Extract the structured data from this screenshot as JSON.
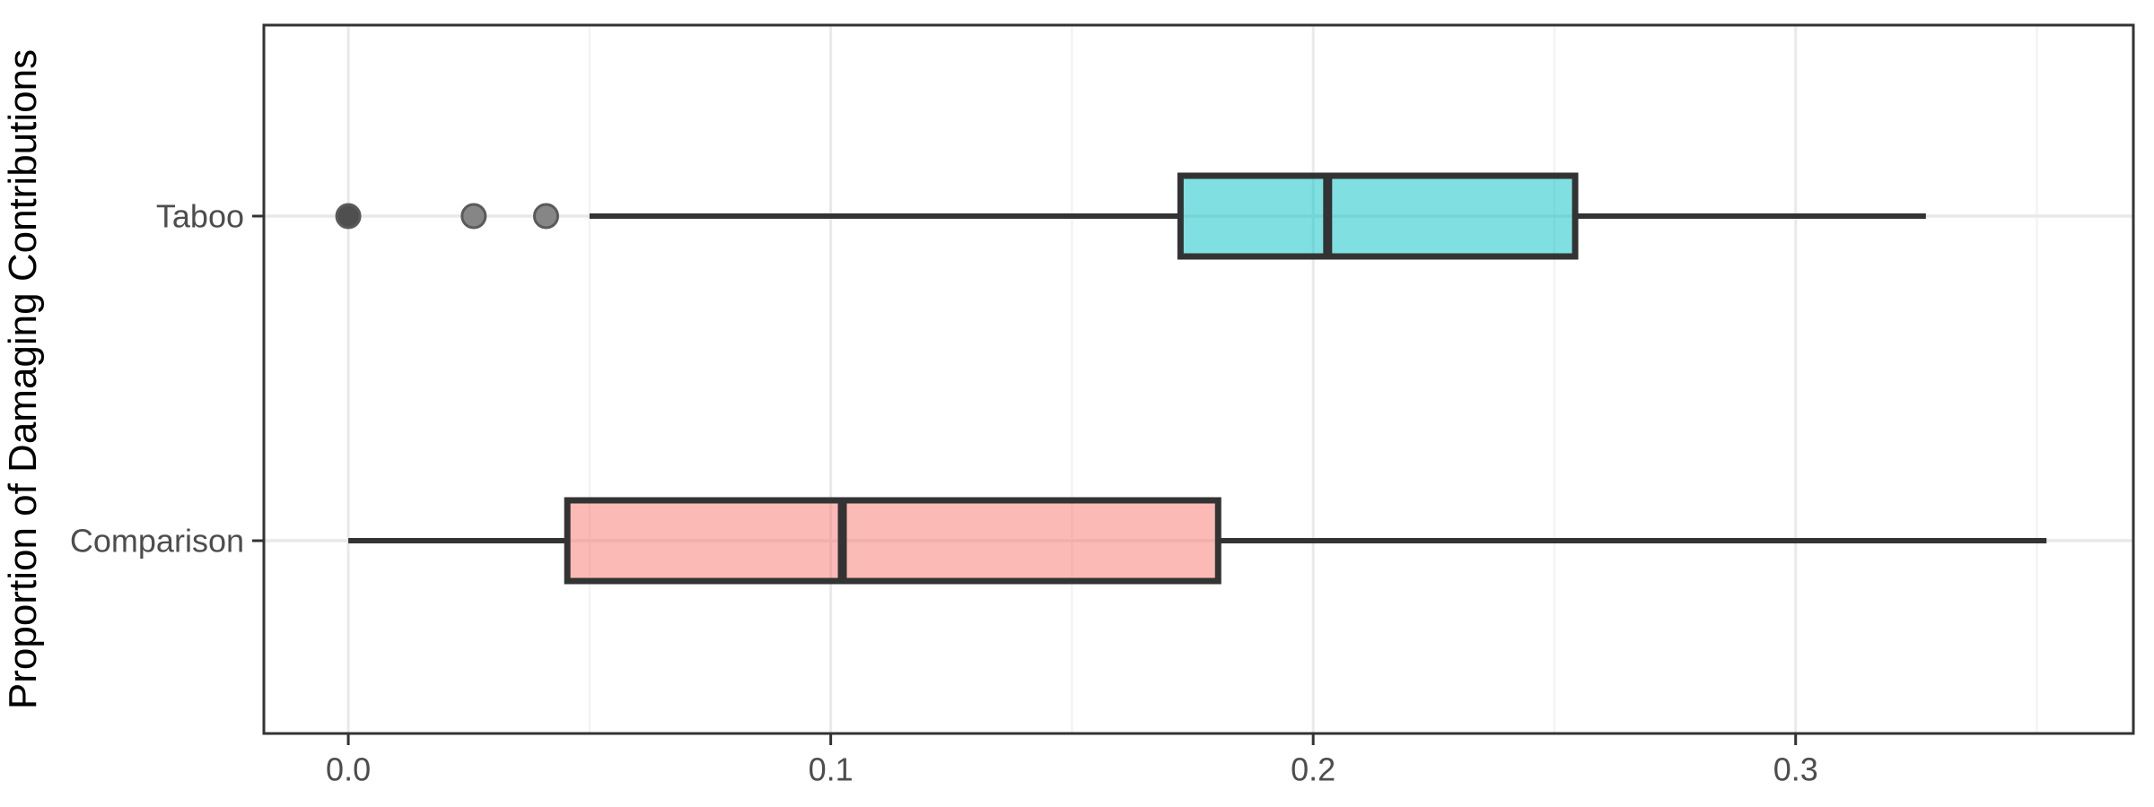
{
  "figure": {
    "background": "#ffffff"
  },
  "chart_data": {
    "type": "boxplot",
    "orientation": "horizontal",
    "title": "",
    "xlabel": "",
    "ylabel": "Proportion of Damaging Contributions",
    "categories": [
      "Taboo",
      "Comparison"
    ],
    "x_tick_labels": [
      "0.0",
      "0.1",
      "0.2",
      "0.3"
    ],
    "x_tick_values": [
      0.0,
      0.1,
      0.2,
      0.3
    ],
    "x_minor_ticks": [
      0.05,
      0.15,
      0.25,
      0.35
    ],
    "xlim": [
      -0.0175,
      0.37
    ],
    "grid": true,
    "legend": "none",
    "series": [
      {
        "name": "Taboo",
        "whisker_min": 0.05,
        "q1": 0.1725,
        "median": 0.203,
        "q3": 0.2543,
        "whisker_max": 0.327,
        "outliers": [
          0.0,
          0.026,
          0.041
        ],
        "outlier_colors": [
          "#4f4f4f",
          "#868686",
          "#868686"
        ],
        "fill": "#00BFC4",
        "fill_opacity": 0.5
      },
      {
        "name": "Comparison",
        "whisker_min": 0.0,
        "q1": 0.0454,
        "median": 0.1024,
        "q3": 0.1803,
        "whisker_max": 0.352,
        "outliers": [],
        "outlier_colors": [],
        "fill": "#F8766D",
        "fill_opacity": 0.5
      }
    ],
    "colors": {
      "box_stroke": "#333333",
      "panel_border": "#333333",
      "grid_major": "#e9e9e9",
      "grid_minor": "#f3f3f3",
      "tick_mark": "#333333",
      "tick_label": "#4d4d4d",
      "axis_title": "#000000"
    }
  }
}
